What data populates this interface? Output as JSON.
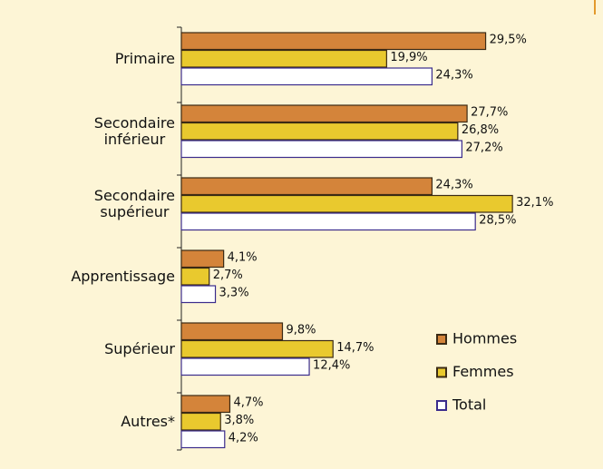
{
  "chart_data": {
    "type": "hbar",
    "categories": [
      "Primaire",
      "Secondaire\ninférieur",
      "Secondaire\nsupérieur",
      "Apprentissage",
      "Supérieur",
      "Autres*"
    ],
    "series": [
      {
        "name": "Hommes",
        "color": "#d4843a",
        "border": "#3b2a14",
        "values": [
          29.5,
          27.7,
          24.3,
          4.1,
          9.8,
          4.7
        ],
        "value_labels": [
          "29,5%",
          "27,7%",
          "24,3%",
          "4,1%",
          "9,8%",
          "4,7%"
        ]
      },
      {
        "name": "Femmes",
        "color": "#e9c92e",
        "border": "#3b2a14",
        "values": [
          19.9,
          26.8,
          32.1,
          2.7,
          14.7,
          3.8
        ],
        "value_labels": [
          "19,9%",
          "26,8%",
          "32,1%",
          "2,7%",
          "14,7%",
          "3,8%"
        ]
      },
      {
        "name": "Total",
        "color": "#ffffff",
        "border": "#3b2c8c",
        "values": [
          24.3,
          27.2,
          28.5,
          3.3,
          12.4,
          4.2
        ],
        "value_labels": [
          "24,3%",
          "27,2%",
          "28,5%",
          "3,3%",
          "12,4%",
          "4,2%"
        ]
      }
    ],
    "xlim": [
      0,
      40
    ],
    "legend": "right"
  }
}
